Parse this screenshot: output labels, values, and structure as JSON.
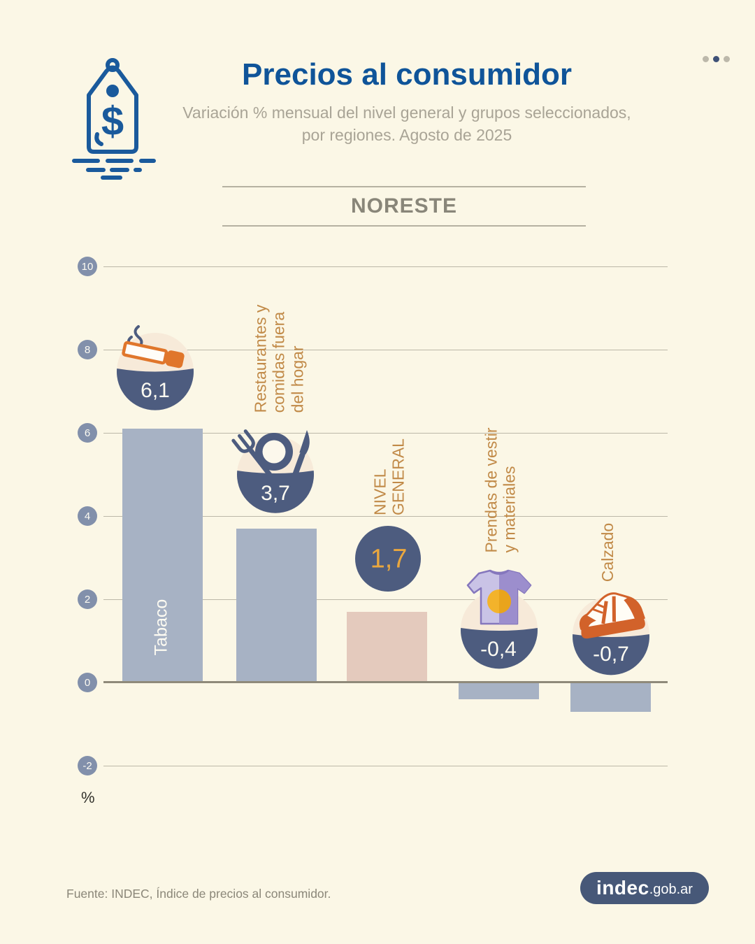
{
  "header": {
    "title": "Precios al consumidor",
    "subtitle1": "Variación % mensual del nivel general y grupos seleccionados,",
    "subtitle2": "por regiones. Agosto de 2025"
  },
  "region": "NORESTE",
  "axis": {
    "unit": "%",
    "ticks": [
      "10",
      "8",
      "6",
      "4",
      "2",
      "0",
      "-2"
    ]
  },
  "bars": [
    {
      "label": "Tabaco",
      "value_label": "6,1",
      "icon": "cigarette-icon"
    },
    {
      "label": "Restaurantes y\ncomidas fuera\ndel hogar",
      "value_label": "3,7",
      "icon": "restaurant-icon"
    },
    {
      "label": "NIVEL\nGENERAL",
      "value_label": "1,7",
      "icon": "none"
    },
    {
      "label": "Prendas de vestir\ny materiales",
      "value_label": "-0,4",
      "icon": "tshirt-icon"
    },
    {
      "label": "Calzado",
      "value_label": "-0,7",
      "icon": "sneaker-icon"
    }
  ],
  "chart_data": {
    "type": "bar",
    "title": "Precios al consumidor",
    "subtitle": "Variación % mensual del nivel general y grupos seleccionados, por regiones. Agosto de 2025",
    "region": "NORESTE",
    "categories": [
      "Tabaco",
      "Restaurantes y comidas fuera del hogar",
      "NIVEL GENERAL",
      "Prendas de vestir y materiales",
      "Calzado"
    ],
    "values": [
      6.1,
      3.7,
      1.7,
      -0.4,
      -0.7
    ],
    "value_labels": [
      "6,1",
      "3,7",
      "1,7",
      "-0,4",
      "-0,7"
    ],
    "xlabel": "",
    "ylabel": "%",
    "ylim": [
      -2,
      10
    ],
    "yticks": [
      10,
      8,
      6,
      4,
      2,
      0,
      -2
    ],
    "grid": true,
    "legend": false
  },
  "footer": {
    "source": "Fuente: INDEC, Índice de precios al consumidor.",
    "logo_bold": "indec",
    "logo_rest": ".gob.ar"
  },
  "colors": {
    "background": "#fbf7e6",
    "title_blue": "#0f5499",
    "bar_gray_blue": "#a7b2c4",
    "bar_pink": "#e4cabd",
    "navy": "#4d5c7f",
    "orange_label": "#c18a48",
    "gold_value": "#eaa73e",
    "cigarette_orange": "#e0762b",
    "sneaker_orange": "#d2622a",
    "icon_cream": "#f7ead9",
    "tick_circle": "#8290ab",
    "logo_navy": "#475878"
  }
}
